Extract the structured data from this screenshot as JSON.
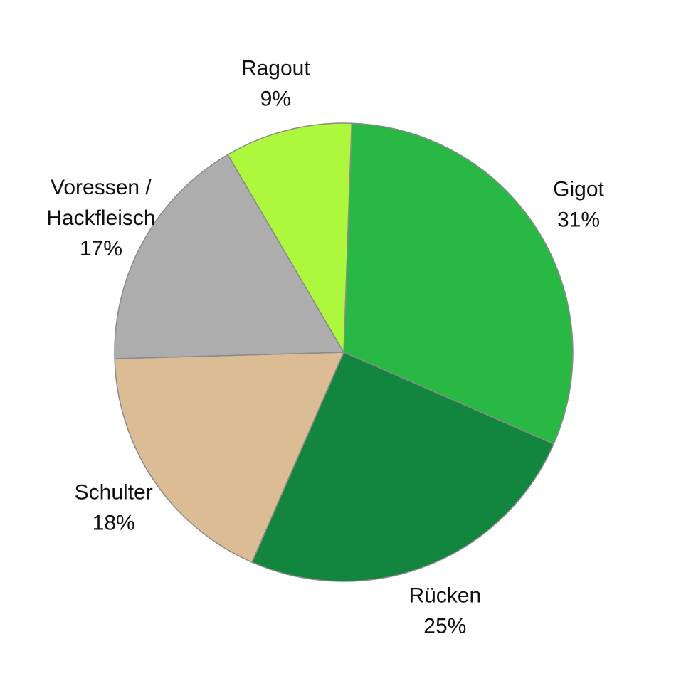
{
  "chart_data": {
    "type": "pie",
    "start_angle_deg": 2,
    "direction": "clockwise",
    "slices": [
      {
        "label_lines": [
          "Gigot"
        ],
        "percent_label": "31%",
        "value": 31,
        "color": "#2ab845"
      },
      {
        "label_lines": [
          "Rücken"
        ],
        "percent_label": "25%",
        "value": 25,
        "color": "#12863f"
      },
      {
        "label_lines": [
          "Schulter"
        ],
        "percent_label": "18%",
        "value": 18,
        "color": "#dbbc94"
      },
      {
        "label_lines": [
          "Voressen /",
          "Hackfleisch"
        ],
        "percent_label": "17%",
        "value": 17,
        "color": "#adadad"
      },
      {
        "label_lines": [
          "Ragout"
        ],
        "percent_label": "9%",
        "value": 9,
        "color": "#adf73c"
      }
    ]
  }
}
